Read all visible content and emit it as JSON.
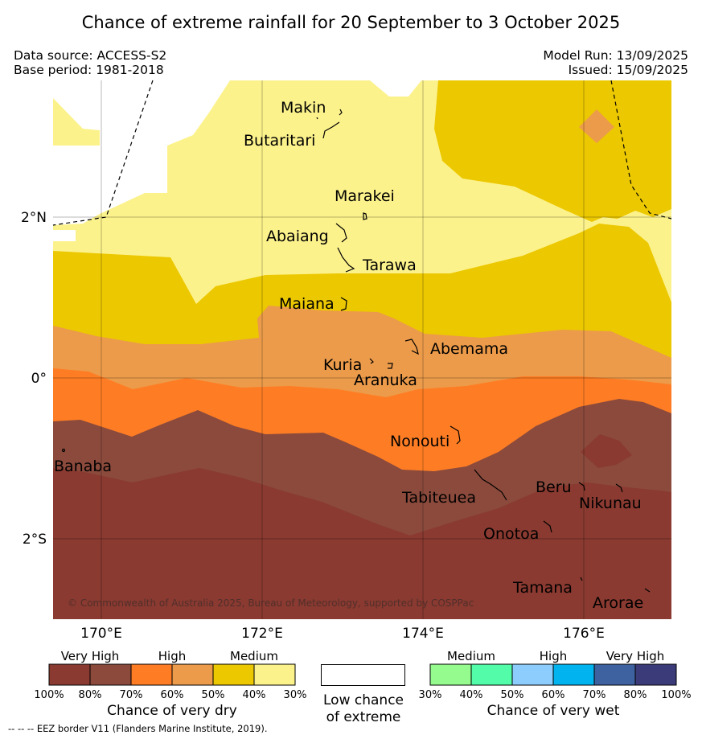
{
  "title": "Chance of extreme rainfall for 20 September to 3 October 2025",
  "data_source": "Data source: ACCESS-S2",
  "base_period": "Base period: 1981-2018",
  "model_run": "Model Run: 13/09/2025",
  "issued": "Issued: 15/09/2025",
  "copyright": "© Commonwealth of Australia 2025, Bureau of Meteorology, supported by COSPPac",
  "map": {
    "lon_ticks": [
      "170°E",
      "172°E",
      "174°E",
      "176°E"
    ],
    "lat_ticks": [
      "2°N",
      "0°",
      "2°S"
    ],
    "islands": [
      "Makin",
      "Butaritari",
      "Marakei",
      "Abaiang",
      "Tarawa",
      "Maiana",
      "Abemama",
      "Kuria",
      "Aranuka",
      "Nonouti",
      "Banaba",
      "Tabiteuea",
      "Beru",
      "Nikunau",
      "Onotoa",
      "Tamana",
      "Arorae"
    ]
  },
  "legend_dry": {
    "title": "Chance of very dry",
    "categories": [
      "Very High",
      "High",
      "Medium"
    ],
    "colors": [
      "#8a3a30",
      "#8b4a3c",
      "#fe7d24",
      "#ec9b4a",
      "#ecc800",
      "#fcf28c"
    ],
    "ticks": [
      "100%",
      "80%",
      "70%",
      "60%",
      "50%",
      "40%",
      "30%"
    ]
  },
  "legend_low": {
    "line1": "Low chance",
    "line2": "of extreme"
  },
  "legend_wet": {
    "title": "Chance of very wet",
    "categories": [
      "Medium",
      "High",
      "Very High"
    ],
    "colors": [
      "#95fb8e",
      "#52fca9",
      "#8ccdfe",
      "#01b3ee",
      "#3e61a0",
      "#3b3b7a"
    ],
    "ticks": [
      "30%",
      "40%",
      "50%",
      "60%",
      "70%",
      "80%",
      "100%"
    ]
  },
  "eez_note": "--  --  -- EEZ border V11 (Flanders Marine Institute, 2019)."
}
